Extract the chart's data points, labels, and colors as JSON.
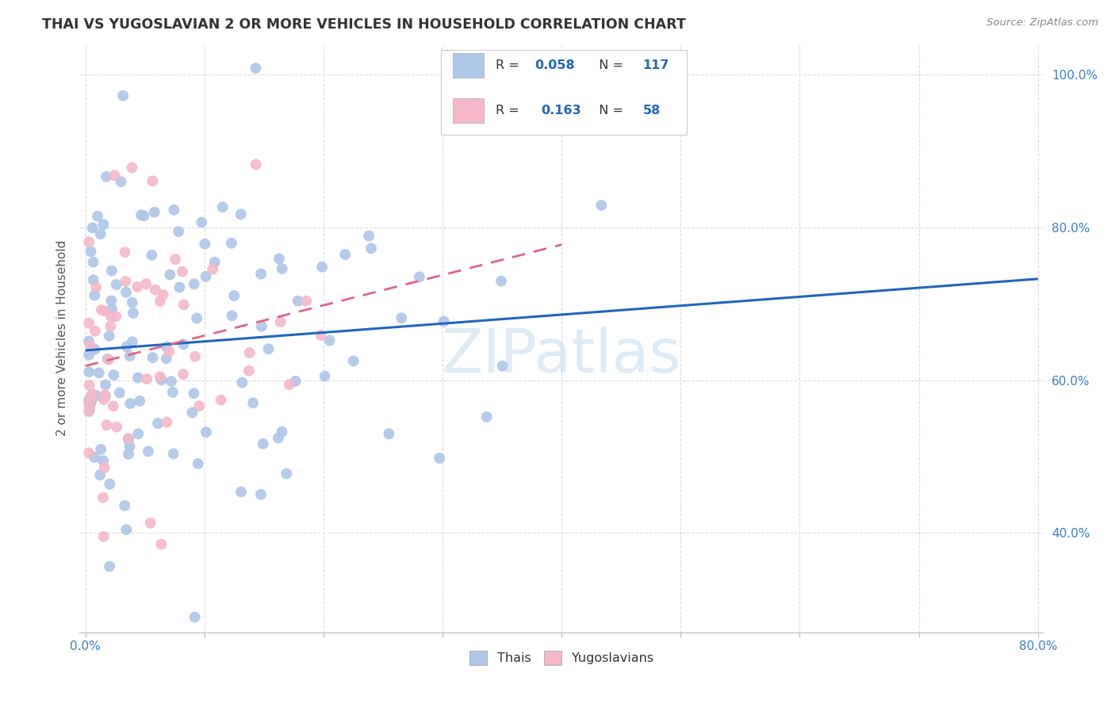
{
  "title": "THAI VS YUGOSLAVIAN 2 OR MORE VEHICLES IN HOUSEHOLD CORRELATION CHART",
  "source": "Source: ZipAtlas.com",
  "ylabel": "2 or more Vehicles in Household",
  "thai_color": "#aec6e8",
  "yugoslav_color": "#f4b8c8",
  "thai_line_color": "#2266bb",
  "yugoslav_line_color": "#dd6688",
  "watermark": "ZIPatlas",
  "xlim": [
    0.0,
    0.8
  ],
  "ylim": [
    0.27,
    1.04
  ],
  "xticks": [
    0.0,
    0.1,
    0.2,
    0.3,
    0.4,
    0.5,
    0.6,
    0.7,
    0.8
  ],
  "xtick_labels": [
    "0.0%",
    "",
    "",
    "",
    "",
    "",
    "",
    "",
    "80.0%"
  ],
  "yticks": [
    0.4,
    0.6,
    0.8,
    1.0
  ],
  "ytick_labels": [
    "40.0%",
    "60.0%",
    "80.0%",
    "100.0%"
  ],
  "ytick_color": "#3a7ec8",
  "grid_color": "#dddddd",
  "thai_R": "0.058",
  "thai_N": "117",
  "yug_R": "0.163",
  "yug_N": "58"
}
